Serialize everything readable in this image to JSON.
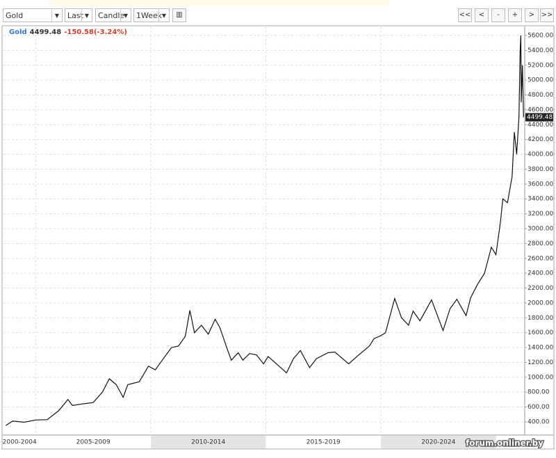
{
  "toolbar": {
    "selects": [
      "Gold",
      "Last",
      "Candle",
      "1Week"
    ],
    "nav": [
      "<<",
      "<",
      "-",
      "+",
      ">",
      ">>"
    ]
  },
  "quote": {
    "name": "Gold",
    "last": "4499.48",
    "change": "-150.58(-3.24%)"
  },
  "watermark": "forum.onliner.by",
  "chart_data": {
    "type": "line",
    "color": "#111111",
    "series": [
      {
        "name": "Gold",
        "color": "#111111",
        "x": [
          2003.7,
          2004,
          2004.5,
          2005,
          2005.5,
          2006,
          2006.4,
          2006.6,
          2007,
          2007.5,
          2007.9,
          2008.2,
          2008.5,
          2008.8,
          2009,
          2009.5,
          2009.9,
          2010.2,
          2010.5,
          2010.9,
          2011.2,
          2011.5,
          2011.7,
          2011.9,
          2012.2,
          2012.5,
          2012.8,
          2013,
          2013.3,
          2013.5,
          2013.8,
          2014,
          2014.3,
          2014.6,
          2014.9,
          2015.1,
          2015.5,
          2015.9,
          2016.2,
          2016.5,
          2016.9,
          2017.2,
          2017.7,
          2018,
          2018.6,
          2019,
          2019.5,
          2019.7,
          2020,
          2020.2,
          2020.6,
          2020.9,
          2021.2,
          2021.4,
          2021.7,
          2022.2,
          2022.7,
          2023,
          2023.3,
          2023.7,
          2023.9,
          2024.2,
          2024.5,
          2024.8,
          2025,
          2025.2,
          2025.3,
          2025.5,
          2025.7,
          2025.8,
          2025.9,
          2026,
          2026.05,
          2026.08,
          2026.1,
          2026.15,
          2026.2
        ],
        "values": [
          350,
          410,
          395,
          425,
          430,
          550,
          700,
          620,
          640,
          660,
          800,
          980,
          900,
          730,
          900,
          940,
          1150,
          1100,
          1230,
          1400,
          1420,
          1550,
          1900,
          1600,
          1700,
          1580,
          1780,
          1670,
          1400,
          1230,
          1330,
          1230,
          1320,
          1300,
          1180,
          1280,
          1170,
          1060,
          1250,
          1360,
          1130,
          1250,
          1330,
          1340,
          1180,
          1290,
          1420,
          1520,
          1560,
          1600,
          2060,
          1800,
          1700,
          1890,
          1760,
          2040,
          1630,
          1920,
          2050,
          1830,
          2070,
          2250,
          2400,
          2750,
          2650,
          3100,
          3400,
          3350,
          3700,
          4300,
          4000,
          4500,
          5400,
          5600,
          4700,
          5200,
          4499.48
        ]
      }
    ],
    "xlim": [
      2003.6,
      2026.25
    ],
    "xticks": [
      {
        "value": 2002.5,
        "label": "2000-2004"
      },
      {
        "value": 2007.5,
        "label": "2005-2009"
      },
      {
        "value": 2012.5,
        "label": "2010-2014"
      },
      {
        "value": 2017.5,
        "label": "2015-2019"
      },
      {
        "value": 2022.5,
        "label": "2020-2024"
      }
    ],
    "ylim": [
      222,
      5722
    ],
    "yticks": [
      {
        "value": 400,
        "label": "400.00"
      },
      {
        "value": 600,
        "label": "600.00"
      },
      {
        "value": 800,
        "label": "800.00"
      },
      {
        "value": 1000,
        "label": "1000.00"
      },
      {
        "value": 1200,
        "label": "1200.00"
      },
      {
        "value": 1400,
        "label": "1400.00"
      },
      {
        "value": 1600,
        "label": "1600.00"
      },
      {
        "value": 1800,
        "label": "1800.00"
      },
      {
        "value": 2000,
        "label": "2000.00"
      },
      {
        "value": 2200,
        "label": "2200.00"
      },
      {
        "value": 2400,
        "label": "2400.00"
      },
      {
        "value": 2600,
        "label": "2600.00"
      },
      {
        "value": 2800,
        "label": "2800.00"
      },
      {
        "value": 3000,
        "label": "3000.00"
      },
      {
        "value": 3200,
        "label": "3200.00"
      },
      {
        "value": 3400,
        "label": "3400.00"
      },
      {
        "value": 3600,
        "label": "3600.00"
      },
      {
        "value": 3800,
        "label": "3800.00"
      },
      {
        "value": 4000,
        "label": "4000.00"
      },
      {
        "value": 4200,
        "label": "4200.00"
      },
      {
        "value": 4400,
        "label": "4400.00"
      },
      {
        "value": 4600,
        "label": "4600.00"
      },
      {
        "value": 4800,
        "label": "4800.00"
      },
      {
        "value": 5000,
        "label": "5000.00"
      },
      {
        "value": 5200,
        "label": "5200.00"
      },
      {
        "value": 5400,
        "label": "5400.00"
      },
      {
        "value": 5600,
        "label": "5600.00"
      }
    ],
    "grid": true
  }
}
